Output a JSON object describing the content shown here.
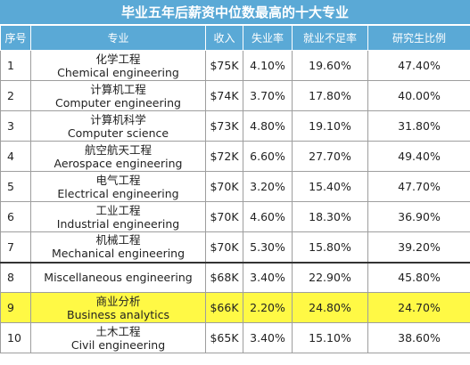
{
  "title": "毕业五年后薪资中位数最高的十大专业",
  "columns": [
    "序号",
    "专业",
    "收入",
    "失业率",
    "就业不足率",
    "研究生比例"
  ],
  "rows": [
    {
      "no": "1",
      "major_cn": "化学工程",
      "major_en": "Chemical engineering",
      "income": "$75K",
      "unemployment": "4.10%",
      "underemployment": "19.60%",
      "grad_share": "47.40%"
    },
    {
      "no": "2",
      "major_cn": "计算机工程",
      "major_en": "Computer engineering",
      "income": "$74K",
      "unemployment": "3.70%",
      "underemployment": "17.80%",
      "grad_share": "40.00%"
    },
    {
      "no": "3",
      "major_cn": "计算机科学",
      "major_en": "Computer science",
      "income": "$73K",
      "unemployment": "4.80%",
      "underemployment": "19.10%",
      "grad_share": "31.80%"
    },
    {
      "no": "4",
      "major_cn": "航空航天工程",
      "major_en": "Aerospace engineering",
      "income": "$72K",
      "unemployment": "6.60%",
      "underemployment": "27.70%",
      "grad_share": "49.40%"
    },
    {
      "no": "5",
      "major_cn": "电气工程",
      "major_en": "Electrical engineering",
      "income": "$70K",
      "unemployment": "3.20%",
      "underemployment": "15.40%",
      "grad_share": "47.70%"
    },
    {
      "no": "6",
      "major_cn": "工业工程",
      "major_en": "Industrial engineering",
      "income": "$70K",
      "unemployment": "4.60%",
      "underemployment": "18.30%",
      "grad_share": "36.90%"
    },
    {
      "no": "7",
      "major_cn": "机械工程",
      "major_en": "Mechanical engineering",
      "income": "$70K",
      "unemployment": "5.30%",
      "underemployment": "15.80%",
      "grad_share": "39.20%"
    },
    {
      "no": "8",
      "major_cn": "",
      "major_en": "Miscellaneous engineering",
      "income": "$68K",
      "unemployment": "3.40%",
      "underemployment": "22.90%",
      "grad_share": "45.80%"
    },
    {
      "no": "9",
      "major_cn": "商业分析",
      "major_en": "Business analytics",
      "income": "$66K",
      "unemployment": "2.20%",
      "underemployment": "24.80%",
      "grad_share": "24.70%"
    },
    {
      "no": "10",
      "major_cn": "土木工程",
      "major_en": "Civil engineering",
      "income": "$65K",
      "unemployment": "3.40%",
      "underemployment": "15.10%",
      "grad_share": "38.60%"
    }
  ],
  "colors": {
    "header_bg": "#5aa9d6",
    "highlight_row": "#fff945"
  }
}
